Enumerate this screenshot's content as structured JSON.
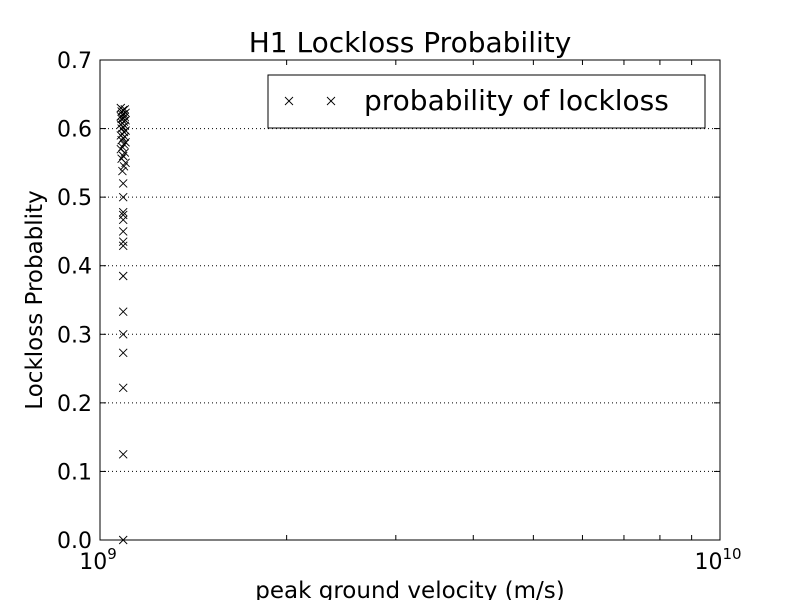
{
  "chart_data": {
    "type": "scatter",
    "title": "H1 Lockloss Probability",
    "xlabel": "peak ground velocity (m/s)",
    "ylabel": "Lockloss Probablity",
    "xscale": "log",
    "xlim": [
      1000000000.0,
      10000000000.0
    ],
    "ylim": [
      0,
      0.7
    ],
    "grid": "horizontal dotted",
    "legend_position": "top-right",
    "xticks": [
      {
        "value": 1000000000.0,
        "base": "10",
        "exp": "9"
      },
      {
        "value": 10000000000.0,
        "base": "10",
        "exp": "10"
      }
    ],
    "yticks": [
      {
        "value": 0.0,
        "label": "0.0"
      },
      {
        "value": 0.1,
        "label": "0.1"
      },
      {
        "value": 0.2,
        "label": "0.2"
      },
      {
        "value": 0.3,
        "label": "0.3"
      },
      {
        "value": 0.4,
        "label": "0.4"
      },
      {
        "value": 0.5,
        "label": "0.5"
      },
      {
        "value": 0.6,
        "label": "0.6"
      },
      {
        "value": 0.7,
        "label": "0.7"
      }
    ],
    "series": [
      {
        "name": "probability of lockloss",
        "marker": "x",
        "color": "#000000",
        "x": [
          1090000000.0,
          1090000000.0,
          1090000000.0,
          1090000000.0,
          1090000000.0,
          1090000000.0,
          1090000000.0,
          1090000000.0,
          1090000000.0,
          1090000000.0,
          1090000000.0,
          1090000000.0,
          1090000000.0,
          1090000000.0,
          1090000000.0,
          1090000000.0,
          1090000000.0,
          1090000000.0,
          1090000000.0,
          1090000000.0,
          1090000000.0,
          1090000000.0,
          1090000000.0,
          1090000000.0,
          1090000000.0,
          1090000000.0,
          1090000000.0,
          1090000000.0,
          1090000000.0,
          1090000000.0,
          1090000000.0,
          1090000000.0,
          1090000000.0,
          1090000000.0,
          1090000000.0,
          1090000000.0,
          1090000000.0,
          1090000000.0,
          1090000000.0,
          1090000000.0,
          1090000000.0,
          1090000000.0,
          1090000000.0,
          1090000000.0,
          1090000000.0,
          1090000000.0,
          1090000000.0,
          1090000000.0,
          1090000000.0,
          1090000000.0
        ],
        "y": [
          0.0,
          0.125,
          0.222,
          0.273,
          0.3,
          0.333,
          0.385,
          0.429,
          0.435,
          0.45,
          0.467,
          0.474,
          0.478,
          0.5,
          0.52,
          0.538,
          0.545,
          0.55,
          0.556,
          0.56,
          0.565,
          0.57,
          0.573,
          0.577,
          0.58,
          0.583,
          0.586,
          0.588,
          0.59,
          0.592,
          0.595,
          0.597,
          0.6,
          0.602,
          0.604,
          0.606,
          0.608,
          0.61,
          0.612,
          0.614,
          0.615,
          0.617,
          0.618,
          0.62,
          0.621,
          0.623,
          0.625,
          0.627,
          0.628,
          0.63
        ]
      }
    ]
  }
}
